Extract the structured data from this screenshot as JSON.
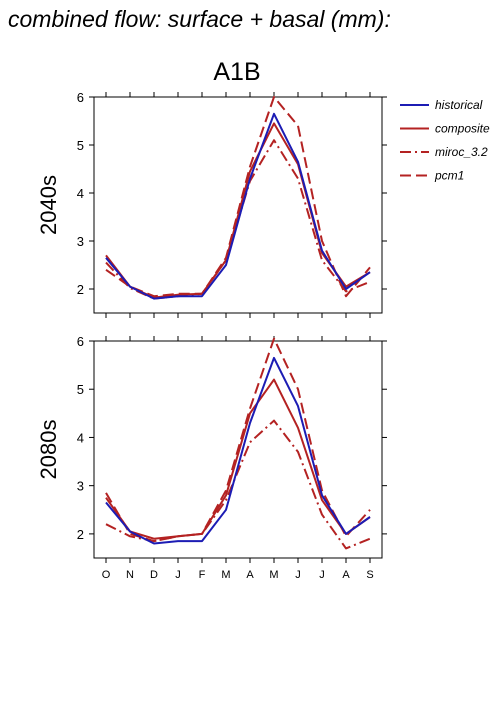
{
  "title": "combined flow: surface + basal (mm):",
  "scenario": "A1B",
  "legend": [
    {
      "label": "historical",
      "color": "#1c1cb4",
      "dash": "solid"
    },
    {
      "label": "composite",
      "color": "#b42222",
      "dash": "solid"
    },
    {
      "label": "miroc_3.2",
      "color": "#b42222",
      "dash": "dashdot"
    },
    {
      "label": "pcm1",
      "color": "#b42222",
      "dash": "dashed"
    }
  ],
  "chart_data": [
    {
      "type": "line",
      "panel_label": "2040s",
      "categories": [
        "O",
        "N",
        "D",
        "J",
        "F",
        "M",
        "A",
        "M",
        "J",
        "J",
        "A",
        "S"
      ],
      "ylim": [
        1.5,
        6
      ],
      "yticks": [
        2,
        3,
        4,
        5,
        6
      ],
      "series": [
        {
          "name": "historical",
          "values": [
            2.65,
            2.05,
            1.8,
            1.85,
            1.85,
            2.5,
            4.3,
            5.65,
            4.65,
            2.8,
            2.0,
            2.35
          ]
        },
        {
          "name": "composite",
          "values": [
            2.7,
            2.05,
            1.82,
            1.88,
            1.9,
            2.6,
            4.45,
            5.45,
            4.6,
            2.75,
            2.05,
            2.35
          ]
        },
        {
          "name": "miroc_3.2",
          "values": [
            2.55,
            2.02,
            1.8,
            1.85,
            1.9,
            2.6,
            4.25,
            5.1,
            4.3,
            2.6,
            1.95,
            2.15
          ]
        },
        {
          "name": "pcm1",
          "values": [
            2.4,
            2.05,
            1.85,
            1.9,
            1.9,
            2.65,
            4.55,
            6.0,
            5.4,
            3.0,
            1.85,
            2.45
          ]
        }
      ]
    },
    {
      "type": "line",
      "panel_label": "2080s",
      "categories": [
        "O",
        "N",
        "D",
        "J",
        "F",
        "M",
        "A",
        "M",
        "J",
        "J",
        "A",
        "S"
      ],
      "ylim": [
        1.5,
        6
      ],
      "yticks": [
        2,
        3,
        4,
        5,
        6
      ],
      "series": [
        {
          "name": "historical",
          "values": [
            2.65,
            2.05,
            1.8,
            1.85,
            1.85,
            2.5,
            4.3,
            5.65,
            4.65,
            2.8,
            2.0,
            2.35
          ]
        },
        {
          "name": "composite",
          "values": [
            2.75,
            2.05,
            1.9,
            1.95,
            2.0,
            2.8,
            4.5,
            5.2,
            4.2,
            2.7,
            2.0,
            2.35
          ]
        },
        {
          "name": "miroc_3.2",
          "values": [
            2.2,
            1.95,
            1.85,
            1.95,
            2.0,
            2.7,
            3.9,
            4.35,
            3.7,
            2.4,
            1.7,
            1.9
          ]
        },
        {
          "name": "pcm1",
          "values": [
            2.85,
            2.0,
            1.85,
            1.95,
            2.0,
            2.9,
            4.6,
            6.05,
            5.0,
            2.9,
            1.95,
            2.5
          ]
        }
      ]
    }
  ]
}
